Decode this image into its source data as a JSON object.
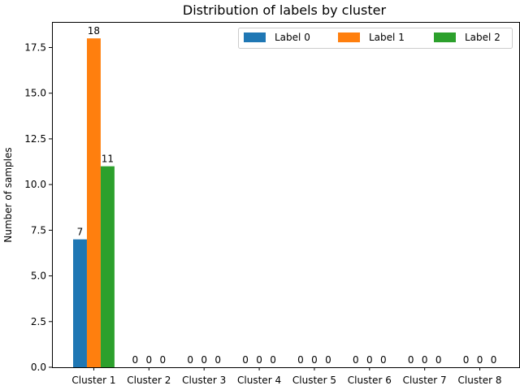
{
  "chart_data": {
    "type": "bar",
    "title": "Distribution of labels by cluster",
    "xlabel": "",
    "ylabel": "Number of samples",
    "categories": [
      "Cluster 1",
      "Cluster 2",
      "Cluster 3",
      "Cluster 4",
      "Cluster 5",
      "Cluster 6",
      "Cluster 7",
      "Cluster 8"
    ],
    "series": [
      {
        "name": "Label 0",
        "color": "#1f77b4",
        "values": [
          7,
          0,
          0,
          0,
          0,
          0,
          0,
          0
        ]
      },
      {
        "name": "Label 1",
        "color": "#ff7f0e",
        "values": [
          18,
          0,
          0,
          0,
          0,
          0,
          0,
          0
        ]
      },
      {
        "name": "Label 2",
        "color": "#2ca02c",
        "values": [
          11,
          0,
          0,
          0,
          0,
          0,
          0,
          0
        ]
      }
    ],
    "ylim": [
      0,
      18.9
    ],
    "yticks": [
      "0.0",
      "2.5",
      "5.0",
      "7.5",
      "10.0",
      "12.5",
      "15.0",
      "17.5"
    ],
    "data_labels": true,
    "legend_placement": "top-right",
    "grid": false
  }
}
